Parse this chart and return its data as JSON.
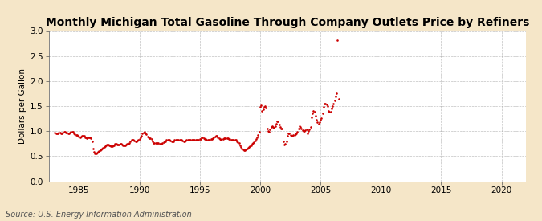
{
  "title": "Monthly Michigan Total Gasoline Through Company Outlets Price by Refiners",
  "ylabel": "Dollars per Gallon",
  "source": "Source: U.S. Energy Information Administration",
  "xlim": [
    1982.5,
    2022
  ],
  "ylim": [
    0.0,
    3.0
  ],
  "xticks": [
    1985,
    1990,
    1995,
    2000,
    2005,
    2010,
    2015,
    2020
  ],
  "yticks": [
    0.0,
    0.5,
    1.0,
    1.5,
    2.0,
    2.5,
    3.0
  ],
  "dot_color": "#cc0000",
  "bg_color": "#f5e6c8",
  "plot_bg_color": "#ffffff",
  "grid_color": "#999999",
  "title_fontsize": 10,
  "ylabel_fontsize": 7.5,
  "tick_fontsize": 7.5,
  "source_fontsize": 7,
  "data": {
    "years_months": [
      1983.0,
      1983.083,
      1983.167,
      1983.25,
      1983.333,
      1983.417,
      1983.5,
      1983.583,
      1983.667,
      1983.75,
      1983.833,
      1983.917,
      1984.0,
      1984.083,
      1984.167,
      1984.25,
      1984.333,
      1984.417,
      1984.5,
      1984.583,
      1984.667,
      1984.75,
      1984.833,
      1984.917,
      1985.0,
      1985.083,
      1985.167,
      1985.25,
      1985.333,
      1985.417,
      1985.5,
      1985.583,
      1985.667,
      1985.75,
      1985.833,
      1985.917,
      1986.0,
      1986.083,
      1986.167,
      1986.25,
      1986.333,
      1986.417,
      1986.5,
      1986.583,
      1986.667,
      1986.75,
      1986.833,
      1986.917,
      1987.0,
      1987.083,
      1987.167,
      1987.25,
      1987.333,
      1987.417,
      1987.5,
      1987.583,
      1987.667,
      1987.75,
      1987.833,
      1987.917,
      1988.0,
      1988.083,
      1988.167,
      1988.25,
      1988.333,
      1988.417,
      1988.5,
      1988.583,
      1988.667,
      1988.75,
      1988.833,
      1988.917,
      1989.0,
      1989.083,
      1989.167,
      1989.25,
      1989.333,
      1989.417,
      1989.5,
      1989.583,
      1989.667,
      1989.75,
      1989.833,
      1989.917,
      1990.0,
      1990.083,
      1990.167,
      1990.25,
      1990.333,
      1990.417,
      1990.5,
      1990.583,
      1990.667,
      1990.75,
      1990.833,
      1990.917,
      1991.0,
      1991.083,
      1991.167,
      1991.25,
      1991.333,
      1991.417,
      1991.5,
      1991.583,
      1991.667,
      1991.75,
      1991.833,
      1991.917,
      1992.0,
      1992.083,
      1992.167,
      1992.25,
      1992.333,
      1992.417,
      1992.5,
      1992.583,
      1992.667,
      1992.75,
      1992.833,
      1992.917,
      1993.0,
      1993.083,
      1993.167,
      1993.25,
      1993.333,
      1993.417,
      1993.5,
      1993.583,
      1993.667,
      1993.75,
      1993.833,
      1993.917,
      1994.0,
      1994.083,
      1994.167,
      1994.25,
      1994.333,
      1994.417,
      1994.5,
      1994.583,
      1994.667,
      1994.75,
      1994.833,
      1994.917,
      1995.0,
      1995.083,
      1995.167,
      1995.25,
      1995.333,
      1995.417,
      1995.5,
      1995.583,
      1995.667,
      1995.75,
      1995.833,
      1995.917,
      1996.0,
      1996.083,
      1996.167,
      1996.25,
      1996.333,
      1996.417,
      1996.5,
      1996.583,
      1996.667,
      1996.75,
      1996.833,
      1996.917,
      1997.0,
      1997.083,
      1997.167,
      1997.25,
      1997.333,
      1997.417,
      1997.5,
      1997.583,
      1997.667,
      1997.75,
      1997.833,
      1997.917,
      1998.0,
      1998.083,
      1998.167,
      1998.25,
      1998.333,
      1998.417,
      1998.5,
      1998.583,
      1998.667,
      1998.75,
      1998.833,
      1998.917,
      1999.0,
      1999.083,
      1999.167,
      1999.25,
      1999.333,
      1999.417,
      1999.5,
      1999.583,
      1999.667,
      1999.75,
      1999.833,
      1999.917,
      2000.0,
      2000.083,
      2000.167,
      2000.25,
      2000.333,
      2000.417,
      2000.5,
      2000.583,
      2000.667,
      2000.75,
      2000.833,
      2000.917,
      2001.0,
      2001.083,
      2001.167,
      2001.25,
      2001.333,
      2001.417,
      2001.5,
      2001.583,
      2001.667,
      2001.75,
      2001.833,
      2001.917,
      2002.0,
      2002.083,
      2002.167,
      2002.25,
      2002.333,
      2002.417,
      2002.5,
      2002.583,
      2002.667,
      2002.75,
      2002.833,
      2002.917,
      2003.0,
      2003.083,
      2003.167,
      2003.25,
      2003.333,
      2003.417,
      2003.5,
      2003.583,
      2003.667,
      2003.75,
      2003.833,
      2003.917,
      2004.0,
      2004.083,
      2004.167,
      2004.25,
      2004.333,
      2004.417,
      2004.5,
      2004.583,
      2004.667,
      2004.75,
      2004.833,
      2004.917,
      2005.0,
      2005.083,
      2005.167,
      2005.25,
      2005.333,
      2005.417,
      2005.5,
      2005.583,
      2005.667,
      2005.75,
      2005.833,
      2005.917,
      2006.0,
      2006.083,
      2006.167,
      2006.25,
      2006.333,
      2006.417,
      2006.5
    ],
    "prices": [
      0.97,
      0.96,
      0.95,
      0.96,
      0.97,
      0.97,
      0.96,
      0.96,
      0.97,
      0.98,
      0.98,
      0.97,
      0.97,
      0.96,
      0.96,
      0.97,
      0.98,
      0.99,
      0.98,
      0.96,
      0.94,
      0.93,
      0.92,
      0.9,
      0.89,
      0.88,
      0.89,
      0.9,
      0.91,
      0.9,
      0.88,
      0.87,
      0.86,
      0.87,
      0.87,
      0.88,
      0.86,
      0.8,
      0.65,
      0.58,
      0.56,
      0.56,
      0.57,
      0.58,
      0.6,
      0.62,
      0.63,
      0.65,
      0.66,
      0.68,
      0.7,
      0.72,
      0.73,
      0.73,
      0.72,
      0.71,
      0.7,
      0.7,
      0.71,
      0.72,
      0.74,
      0.74,
      0.73,
      0.73,
      0.73,
      0.74,
      0.74,
      0.73,
      0.72,
      0.71,
      0.72,
      0.73,
      0.74,
      0.75,
      0.76,
      0.8,
      0.82,
      0.83,
      0.82,
      0.81,
      0.8,
      0.8,
      0.81,
      0.82,
      0.84,
      0.87,
      0.91,
      0.96,
      0.97,
      0.98,
      0.96,
      0.94,
      0.89,
      0.87,
      0.86,
      0.86,
      0.84,
      0.8,
      0.77,
      0.76,
      0.76,
      0.77,
      0.77,
      0.76,
      0.75,
      0.74,
      0.75,
      0.77,
      0.78,
      0.79,
      0.8,
      0.82,
      0.83,
      0.83,
      0.82,
      0.81,
      0.8,
      0.79,
      0.8,
      0.82,
      0.83,
      0.83,
      0.83,
      0.83,
      0.83,
      0.83,
      0.82,
      0.81,
      0.8,
      0.8,
      0.81,
      0.82,
      0.83,
      0.83,
      0.83,
      0.83,
      0.83,
      0.83,
      0.83,
      0.82,
      0.82,
      0.82,
      0.82,
      0.83,
      0.84,
      0.85,
      0.87,
      0.87,
      0.86,
      0.85,
      0.84,
      0.83,
      0.82,
      0.82,
      0.83,
      0.84,
      0.85,
      0.86,
      0.88,
      0.89,
      0.9,
      0.9,
      0.88,
      0.86,
      0.84,
      0.83,
      0.84,
      0.85,
      0.86,
      0.86,
      0.86,
      0.86,
      0.86,
      0.85,
      0.84,
      0.83,
      0.82,
      0.82,
      0.82,
      0.82,
      0.82,
      0.8,
      0.78,
      0.76,
      0.72,
      0.68,
      0.65,
      0.63,
      0.62,
      0.62,
      0.63,
      0.65,
      0.67,
      0.68,
      0.7,
      0.72,
      0.74,
      0.76,
      0.78,
      0.81,
      0.84,
      0.87,
      0.92,
      0.98,
      1.49,
      1.52,
      1.4,
      1.43,
      1.49,
      1.5,
      1.47,
      1.05,
      1.0,
      0.99,
      1.03,
      1.08,
      1.1,
      1.08,
      1.07,
      1.1,
      1.15,
      1.2,
      1.2,
      1.13,
      1.08,
      1.05,
      1.05,
      0.8,
      0.73,
      0.75,
      0.79,
      0.9,
      0.95,
      0.95,
      0.93,
      0.9,
      0.9,
      0.92,
      0.93,
      0.94,
      0.96,
      0.98,
      1.05,
      1.1,
      1.08,
      1.05,
      1.02,
      1.0,
      1.0,
      1.02,
      1.04,
      0.95,
      1.0,
      1.03,
      1.09,
      1.28,
      1.35,
      1.4,
      1.38,
      1.3,
      1.22,
      1.18,
      1.15,
      1.18,
      1.22,
      1.26,
      1.35,
      1.48,
      1.55,
      1.55,
      1.53,
      1.5,
      1.4,
      1.38,
      1.38,
      1.45,
      1.5,
      1.55,
      1.62,
      1.7,
      1.75,
      2.82,
      1.65
    ]
  }
}
